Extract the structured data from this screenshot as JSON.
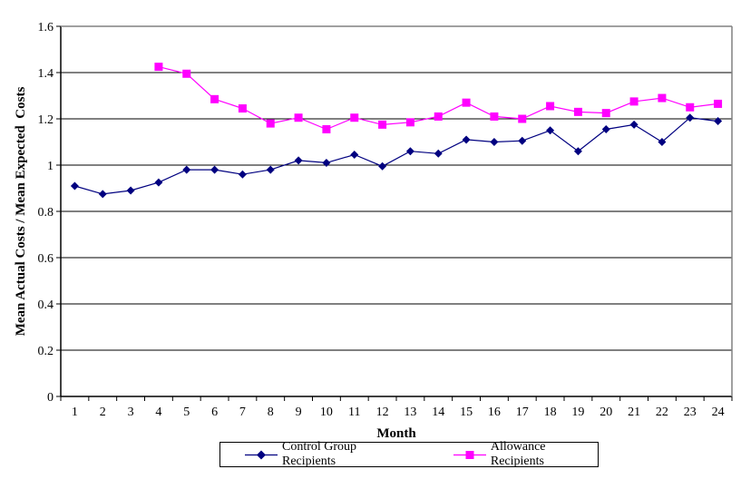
{
  "chart_data": {
    "type": "line",
    "title": "",
    "xlabel": "Month",
    "ylabel": "Mean Actual Costs / Mean Expected  Costs",
    "x": [
      1,
      2,
      3,
      4,
      5,
      6,
      7,
      8,
      9,
      10,
      11,
      12,
      13,
      14,
      15,
      16,
      17,
      18,
      19,
      20,
      21,
      22,
      23,
      24
    ],
    "series": [
      {
        "name": "Control Group Recipients",
        "color": "#000080",
        "marker": "diamond",
        "values": [
          0.91,
          0.875,
          0.89,
          0.925,
          0.98,
          0.98,
          0.96,
          0.98,
          1.02,
          1.01,
          1.045,
          0.995,
          1.06,
          1.05,
          1.11,
          1.1,
          1.105,
          1.15,
          1.06,
          1.155,
          1.175,
          1.1,
          1.205,
          1.19
        ]
      },
      {
        "name": "Allowance Recipients",
        "color": "#FF00FF",
        "marker": "square",
        "values": [
          null,
          null,
          null,
          1.425,
          1.395,
          1.285,
          1.245,
          1.18,
          1.205,
          1.155,
          1.205,
          1.175,
          1.185,
          1.21,
          1.27,
          1.21,
          1.2,
          1.255,
          1.23,
          1.225,
          1.275,
          1.29,
          1.25,
          1.265
        ]
      }
    ],
    "ylim": [
      0,
      1.6
    ],
    "ytick_step": 0.2,
    "ytick_labels": [
      "0",
      "0.2",
      "0.4",
      "0.6",
      "0.8",
      "1",
      "1.2",
      "1.4",
      "1.6"
    ],
    "xtick_labels": [
      "1",
      "2",
      "3",
      "4",
      "5",
      "6",
      "7",
      "8",
      "9",
      "10",
      "11",
      "12",
      "13",
      "14",
      "15",
      "16",
      "17",
      "18",
      "19",
      "20",
      "21",
      "22",
      "23",
      "24"
    ],
    "grid": "horizontal gridlines on",
    "legend_position": "bottom-center"
  },
  "legend": {
    "items": [
      {
        "label": "Control Group Recipients",
        "marker": "diamond",
        "color": "#000080"
      },
      {
        "label": "Allowance Recipients",
        "marker": "square",
        "color": "#FF00FF"
      }
    ]
  },
  "colors": {
    "control_series": "#000080",
    "allowance_series": "#FF00FF",
    "gridline": "#000000",
    "axis_line": "#000000",
    "plot_border": "#808080",
    "background": "#FFFFFF",
    "text": "#000000"
  }
}
